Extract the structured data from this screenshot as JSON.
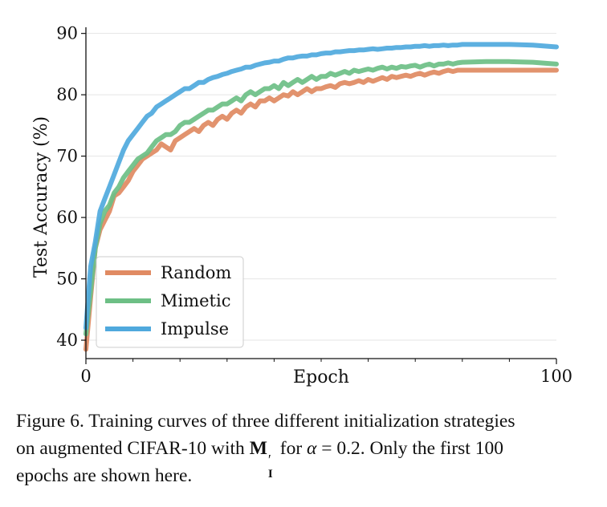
{
  "chart_data": {
    "type": "line",
    "title": "",
    "xlabel": "Epoch",
    "ylabel": "Test Accuracy (%)",
    "xlim": [
      0,
      100
    ],
    "ylim": [
      37,
      91
    ],
    "xticks": [
      0,
      100
    ],
    "yticks": [
      40,
      50,
      60,
      70,
      80,
      90
    ],
    "grid": "horizontal",
    "legend_position": "bottom-left",
    "series": [
      {
        "name": "Random",
        "color": "#e08a62",
        "points": [
          [
            0,
            38.5
          ],
          [
            1,
            47
          ],
          [
            2,
            55
          ],
          [
            3,
            58
          ],
          [
            4,
            59.5
          ],
          [
            5,
            61
          ],
          [
            6,
            63.5
          ],
          [
            7,
            64
          ],
          [
            8,
            65
          ],
          [
            9,
            66
          ],
          [
            10,
            67.5
          ],
          [
            11,
            68.5
          ],
          [
            12,
            69.5
          ],
          [
            13,
            70
          ],
          [
            14,
            70.5
          ],
          [
            15,
            71
          ],
          [
            16,
            72
          ],
          [
            17,
            71.5
          ],
          [
            18,
            71
          ],
          [
            19,
            72.5
          ],
          [
            20,
            73
          ],
          [
            21,
            73.5
          ],
          [
            22,
            74
          ],
          [
            23,
            74.5
          ],
          [
            24,
            74
          ],
          [
            25,
            75
          ],
          [
            26,
            75.5
          ],
          [
            27,
            75
          ],
          [
            28,
            76
          ],
          [
            29,
            76.5
          ],
          [
            30,
            76
          ],
          [
            31,
            77
          ],
          [
            32,
            77.5
          ],
          [
            33,
            77
          ],
          [
            34,
            78
          ],
          [
            35,
            78.5
          ],
          [
            36,
            78
          ],
          [
            37,
            79
          ],
          [
            38,
            79
          ],
          [
            39,
            79.5
          ],
          [
            40,
            79
          ],
          [
            41,
            79.5
          ],
          [
            42,
            80
          ],
          [
            43,
            79.8
          ],
          [
            44,
            80.5
          ],
          [
            45,
            80
          ],
          [
            46,
            80.5
          ],
          [
            47,
            81
          ],
          [
            48,
            80.5
          ],
          [
            49,
            81
          ],
          [
            50,
            81
          ],
          [
            51,
            81.3
          ],
          [
            52,
            81.5
          ],
          [
            53,
            81.2
          ],
          [
            54,
            81.8
          ],
          [
            55,
            82
          ],
          [
            56,
            81.8
          ],
          [
            57,
            82
          ],
          [
            58,
            82.3
          ],
          [
            59,
            82
          ],
          [
            60,
            82.5
          ],
          [
            61,
            82.2
          ],
          [
            62,
            82.5
          ],
          [
            63,
            82.8
          ],
          [
            64,
            82.5
          ],
          [
            65,
            83
          ],
          [
            66,
            82.8
          ],
          [
            67,
            83
          ],
          [
            68,
            83.2
          ],
          [
            69,
            83
          ],
          [
            70,
            83.3
          ],
          [
            71,
            83.5
          ],
          [
            72,
            83.2
          ],
          [
            73,
            83.5
          ],
          [
            74,
            83.7
          ],
          [
            75,
            83.5
          ],
          [
            76,
            83.8
          ],
          [
            77,
            84
          ],
          [
            78,
            83.8
          ],
          [
            79,
            84
          ],
          [
            80,
            84
          ],
          [
            85,
            84
          ],
          [
            90,
            84
          ],
          [
            95,
            84
          ],
          [
            100,
            84
          ]
        ]
      },
      {
        "name": "Mimetic",
        "color": "#6dbf85",
        "points": [
          [
            0,
            41
          ],
          [
            1,
            48
          ],
          [
            2,
            55
          ],
          [
            3,
            59
          ],
          [
            4,
            61
          ],
          [
            5,
            62
          ],
          [
            6,
            64
          ],
          [
            7,
            65
          ],
          [
            8,
            66.5
          ],
          [
            9,
            67.5
          ],
          [
            10,
            68.5
          ],
          [
            11,
            69.5
          ],
          [
            12,
            70
          ],
          [
            13,
            70.5
          ],
          [
            14,
            71.5
          ],
          [
            15,
            72.5
          ],
          [
            16,
            73
          ],
          [
            17,
            73.5
          ],
          [
            18,
            73.5
          ],
          [
            19,
            74
          ],
          [
            20,
            75
          ],
          [
            21,
            75.5
          ],
          [
            22,
            75.5
          ],
          [
            23,
            76
          ],
          [
            24,
            76.5
          ],
          [
            25,
            77
          ],
          [
            26,
            77.5
          ],
          [
            27,
            77.5
          ],
          [
            28,
            78
          ],
          [
            29,
            78.5
          ],
          [
            30,
            78.5
          ],
          [
            31,
            79
          ],
          [
            32,
            79.5
          ],
          [
            33,
            79
          ],
          [
            34,
            80
          ],
          [
            35,
            80.5
          ],
          [
            36,
            80
          ],
          [
            37,
            80.5
          ],
          [
            38,
            81
          ],
          [
            39,
            81
          ],
          [
            40,
            81.5
          ],
          [
            41,
            81
          ],
          [
            42,
            82
          ],
          [
            43,
            81.5
          ],
          [
            44,
            82
          ],
          [
            45,
            82.5
          ],
          [
            46,
            82
          ],
          [
            47,
            82.5
          ],
          [
            48,
            83
          ],
          [
            49,
            82.5
          ],
          [
            50,
            83
          ],
          [
            51,
            83
          ],
          [
            52,
            83.5
          ],
          [
            53,
            83.2
          ],
          [
            54,
            83.5
          ],
          [
            55,
            83.8
          ],
          [
            56,
            83.5
          ],
          [
            57,
            84
          ],
          [
            58,
            83.8
          ],
          [
            59,
            84
          ],
          [
            60,
            84.2
          ],
          [
            61,
            84
          ],
          [
            62,
            84.3
          ],
          [
            63,
            84.5
          ],
          [
            64,
            84.2
          ],
          [
            65,
            84.5
          ],
          [
            66,
            84.3
          ],
          [
            67,
            84.6
          ],
          [
            68,
            84.5
          ],
          [
            69,
            84.7
          ],
          [
            70,
            84.8
          ],
          [
            71,
            84.5
          ],
          [
            72,
            84.8
          ],
          [
            73,
            85
          ],
          [
            74,
            84.7
          ],
          [
            75,
            85
          ],
          [
            76,
            85
          ],
          [
            77,
            85.2
          ],
          [
            78,
            85
          ],
          [
            79,
            85.2
          ],
          [
            80,
            85.3
          ],
          [
            85,
            85.4
          ],
          [
            90,
            85.4
          ],
          [
            95,
            85.3
          ],
          [
            100,
            85
          ]
        ]
      },
      {
        "name": "Impulse",
        "color": "#4fa9dd",
        "points": [
          [
            0,
            42
          ],
          [
            1,
            52
          ],
          [
            2,
            56
          ],
          [
            3,
            61
          ],
          [
            4,
            63
          ],
          [
            5,
            65
          ],
          [
            6,
            67
          ],
          [
            7,
            69
          ],
          [
            8,
            71
          ],
          [
            9,
            72.5
          ],
          [
            10,
            73.5
          ],
          [
            11,
            74.5
          ],
          [
            12,
            75.5
          ],
          [
            13,
            76.5
          ],
          [
            14,
            77
          ],
          [
            15,
            78
          ],
          [
            16,
            78.5
          ],
          [
            17,
            79
          ],
          [
            18,
            79.5
          ],
          [
            19,
            80
          ],
          [
            20,
            80.5
          ],
          [
            21,
            81
          ],
          [
            22,
            81
          ],
          [
            23,
            81.5
          ],
          [
            24,
            82
          ],
          [
            25,
            82
          ],
          [
            26,
            82.5
          ],
          [
            27,
            82.8
          ],
          [
            28,
            83
          ],
          [
            29,
            83.3
          ],
          [
            30,
            83.5
          ],
          [
            31,
            83.8
          ],
          [
            32,
            84
          ],
          [
            33,
            84.2
          ],
          [
            34,
            84.5
          ],
          [
            35,
            84.5
          ],
          [
            36,
            84.8
          ],
          [
            37,
            85
          ],
          [
            38,
            85.2
          ],
          [
            39,
            85.3
          ],
          [
            40,
            85.5
          ],
          [
            41,
            85.5
          ],
          [
            42,
            85.8
          ],
          [
            43,
            86
          ],
          [
            44,
            86
          ],
          [
            45,
            86.2
          ],
          [
            46,
            86.3
          ],
          [
            47,
            86.3
          ],
          [
            48,
            86.5
          ],
          [
            49,
            86.5
          ],
          [
            50,
            86.7
          ],
          [
            51,
            86.8
          ],
          [
            52,
            86.8
          ],
          [
            53,
            87
          ],
          [
            54,
            87
          ],
          [
            55,
            87.1
          ],
          [
            56,
            87.2
          ],
          [
            57,
            87.2
          ],
          [
            58,
            87.3
          ],
          [
            59,
            87.3
          ],
          [
            60,
            87.4
          ],
          [
            61,
            87.5
          ],
          [
            62,
            87.4
          ],
          [
            63,
            87.5
          ],
          [
            64,
            87.6
          ],
          [
            65,
            87.6
          ],
          [
            66,
            87.7
          ],
          [
            67,
            87.7
          ],
          [
            68,
            87.8
          ],
          [
            69,
            87.8
          ],
          [
            70,
            87.9
          ],
          [
            71,
            87.9
          ],
          [
            72,
            88
          ],
          [
            73,
            87.9
          ],
          [
            74,
            88
          ],
          [
            75,
            88
          ],
          [
            76,
            88.1
          ],
          [
            77,
            88
          ],
          [
            78,
            88.1
          ],
          [
            79,
            88.1
          ],
          [
            80,
            88.2
          ],
          [
            85,
            88.2
          ],
          [
            90,
            88.2
          ],
          [
            95,
            88.1
          ],
          [
            100,
            87.8
          ]
        ]
      }
    ]
  },
  "caption": {
    "line1": "Figure 6. Training curves of three different initialization strategies",
    "line2_prefix": "on augmented CIFAR-10 with ",
    "math_M": "M",
    "math_prime": "′",
    "math_sub": "I",
    "line2_mid": " for ",
    "math_alpha": "α",
    "math_eq": " = 0.2",
    "line2_suffix": ". Only the first 100",
    "line3": "epochs are shown here."
  }
}
